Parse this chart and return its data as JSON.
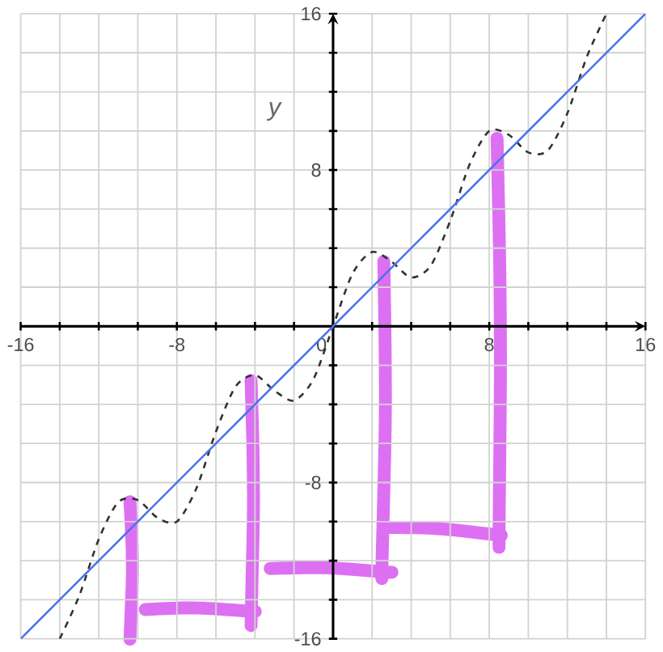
{
  "chart_data": {
    "type": "line",
    "ylabel": "y",
    "xlim": [
      -16,
      16
    ],
    "ylim": [
      -16,
      16
    ],
    "xticks": [
      -16,
      {
        "value": -14,
        "label": null
      },
      {
        "value": -12,
        "label": null
      },
      {
        "value": -10,
        "label": null
      },
      -8,
      {
        "value": -6,
        "label": null
      },
      {
        "value": -4,
        "label": null
      },
      {
        "value": -2,
        "label": null
      },
      0,
      {
        "value": 2,
        "label": null
      },
      {
        "value": 4,
        "label": null
      },
      {
        "value": 6,
        "label": null
      },
      8,
      {
        "value": 10,
        "label": null
      },
      {
        "value": 12,
        "label": null
      },
      {
        "value": 14,
        "label": null
      },
      16
    ],
    "yticks": [
      -16,
      {
        "value": -14,
        "label": null
      },
      {
        "value": -12,
        "label": null
      },
      {
        "value": -10,
        "label": null
      },
      -8,
      {
        "value": -6,
        "label": null
      },
      {
        "value": -4,
        "label": null
      },
      {
        "value": -2,
        "label": null
      },
      {
        "value": 0,
        "label": null
      },
      {
        "value": 2,
        "label": null
      },
      {
        "value": 4,
        "label": null
      },
      {
        "value": 6,
        "label": null
      },
      8,
      {
        "value": 10,
        "label": null
      },
      {
        "value": 12,
        "label": null
      },
      {
        "value": 14,
        "label": null
      },
      16
    ],
    "grid": true,
    "marker": "none",
    "series": [
      {
        "color": "#333333",
        "line_style": "dashed",
        "x": [
          -14,
          -13,
          -12,
          -11,
          -10,
          -9,
          -8,
          -7,
          -6,
          -5,
          -4,
          -3,
          -2,
          -1,
          0,
          1,
          2,
          3,
          4,
          5,
          6,
          7,
          8,
          9,
          10,
          11,
          12,
          13,
          14
        ],
        "values": [
          -16.0,
          -13.8,
          -10.9,
          -9.0,
          -8.9,
          -9.8,
          -10.0,
          -8.3,
          -5.4,
          -3.1,
          -2.5,
          -3.3,
          -3.8,
          -2.7,
          0,
          2.7,
          3.8,
          3.3,
          2.5,
          3.1,
          5.4,
          8.3,
          10.0,
          9.8,
          8.9,
          9.0,
          10.9,
          13.8,
          16.0
        ]
      },
      {
        "color": "#4a73e8",
        "line_style": "solid",
        "x": [
          -16,
          16
        ],
        "values": [
          -16,
          16
        ]
      }
    ]
  }
}
